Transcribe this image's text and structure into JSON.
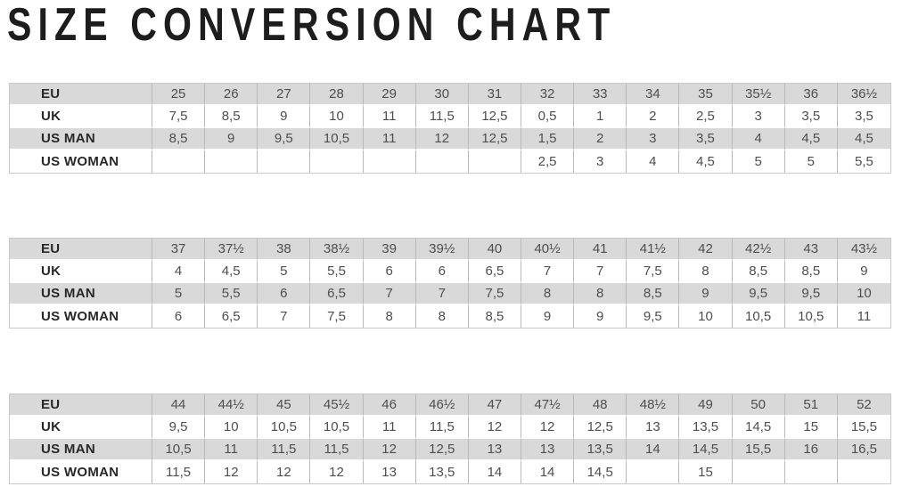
{
  "page_title": "SIZE CONVERSION CHART",
  "colors": {
    "shaded_row": "#d9d9d9",
    "plain_row": "#ffffff",
    "grid_line": "#b8b8b8",
    "outer_border": "#c9c9c9",
    "label_text": "#282828",
    "value_text": "#4e4e4e",
    "title_text": "#1d1d1d"
  },
  "chart_data": [
    {
      "type": "table",
      "rows": [
        {
          "label": "EU",
          "values": [
            "25",
            "26",
            "27",
            "28",
            "29",
            "30",
            "31",
            "32",
            "33",
            "34",
            "35",
            "35½",
            "36",
            "36½"
          ]
        },
        {
          "label": "UK",
          "values": [
            "7,5",
            "8,5",
            "9",
            "10",
            "11",
            "11,5",
            "12,5",
            "0,5",
            "1",
            "2",
            "2,5",
            "3",
            "3,5",
            "3,5"
          ]
        },
        {
          "label": "US MAN",
          "values": [
            "8,5",
            "9",
            "9,5",
            "10,5",
            "11",
            "12",
            "12,5",
            "1,5",
            "2",
            "3",
            "3,5",
            "4",
            "4,5",
            "4,5"
          ]
        },
        {
          "label": "US WOMAN",
          "values": [
            "",
            "",
            "",
            "",
            "",
            "",
            "",
            "2,5",
            "3",
            "4",
            "4,5",
            "5",
            "5",
            "5,5"
          ]
        }
      ]
    },
    {
      "type": "table",
      "rows": [
        {
          "label": "EU",
          "values": [
            "37",
            "37½",
            "38",
            "38½",
            "39",
            "39½",
            "40",
            "40½",
            "41",
            "41½",
            "42",
            "42½",
            "43",
            "43½"
          ]
        },
        {
          "label": "UK",
          "values": [
            "4",
            "4,5",
            "5",
            "5,5",
            "6",
            "6",
            "6,5",
            "7",
            "7",
            "7,5",
            "8",
            "8,5",
            "8,5",
            "9"
          ]
        },
        {
          "label": "US MAN",
          "values": [
            "5",
            "5,5",
            "6",
            "6,5",
            "7",
            "7",
            "7,5",
            "8",
            "8",
            "8,5",
            "9",
            "9,5",
            "9,5",
            "10"
          ]
        },
        {
          "label": "US WOMAN",
          "values": [
            "6",
            "6,5",
            "7",
            "7,5",
            "8",
            "8",
            "8,5",
            "9",
            "9",
            "9,5",
            "10",
            "10,5",
            "10,5",
            "11"
          ]
        }
      ]
    },
    {
      "type": "table",
      "rows": [
        {
          "label": "EU",
          "values": [
            "44",
            "44½",
            "45",
            "45½",
            "46",
            "46½",
            "47",
            "47½",
            "48",
            "48½",
            "49",
            "50",
            "51",
            "52"
          ]
        },
        {
          "label": "UK",
          "values": [
            "9,5",
            "10",
            "10,5",
            "10,5",
            "11",
            "11,5",
            "12",
            "12",
            "12,5",
            "13",
            "13,5",
            "14,5",
            "15",
            "15,5"
          ]
        },
        {
          "label": "US MAN",
          "values": [
            "10,5",
            "11",
            "11,5",
            "11,5",
            "12",
            "12,5",
            "13",
            "13",
            "13,5",
            "14",
            "14,5",
            "15,5",
            "16",
            "16,5"
          ]
        },
        {
          "label": "US WOMAN",
          "values": [
            "11,5",
            "12",
            "12",
            "12",
            "13",
            "13,5",
            "14",
            "14",
            "14,5",
            "",
            "15",
            "",
            "",
            ""
          ]
        }
      ]
    }
  ]
}
